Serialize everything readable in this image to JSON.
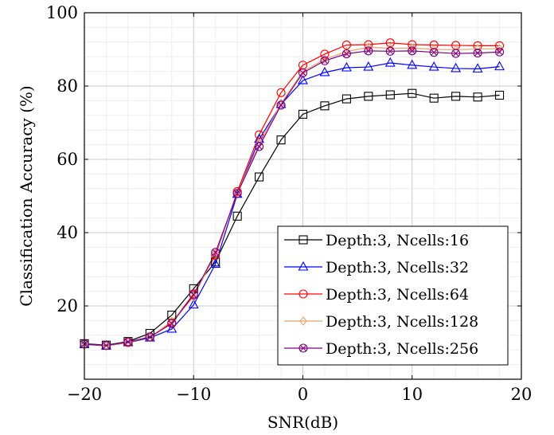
{
  "chart_data": {
    "type": "line",
    "xlabel": "SNR(dB)",
    "ylabel": "Classification Accuracy (%)",
    "xlim": [
      -20,
      20
    ],
    "ylim": [
      0,
      100
    ],
    "xticks": [
      -20,
      -10,
      0,
      10,
      20
    ],
    "xtick_labels": [
      "−20",
      "−10",
      "0",
      "10",
      "20"
    ],
    "yticks": [
      20,
      40,
      60,
      80,
      100
    ],
    "ytick_labels": [
      "20",
      "40",
      "60",
      "80",
      "100"
    ],
    "grid": true,
    "legend_position": "bottom-right",
    "x": [
      -20,
      -18,
      -16,
      -14,
      -12,
      -10,
      -8,
      -6,
      -4,
      -2,
      0,
      2,
      4,
      6,
      8,
      10,
      12,
      14,
      16,
      18
    ],
    "series": [
      {
        "name": "Depth:3, Ncells:16",
        "color": "#000000",
        "marker": "square",
        "values": [
          9.7,
          9.3,
          10.3,
          12.5,
          17.5,
          24.7,
          32.0,
          44.5,
          55.2,
          65.3,
          72.3,
          74.6,
          76.5,
          77.2,
          77.6,
          78.0,
          76.7,
          77.2,
          77.0,
          77.5
        ]
      },
      {
        "name": "Depth:3, Ncells:32",
        "color": "#0000ff",
        "marker": "triangle",
        "values": [
          9.5,
          9.1,
          10.0,
          11.3,
          13.7,
          20.3,
          31.4,
          50.5,
          65.5,
          75.0,
          81.5,
          83.7,
          85.0,
          85.2,
          86.3,
          85.7,
          85.2,
          84.8,
          84.7,
          85.3
        ]
      },
      {
        "name": "Depth:3, Ncells:64",
        "color": "#ff0000",
        "marker": "circle",
        "values": [
          9.6,
          9.2,
          10.0,
          11.6,
          15.4,
          23.3,
          33.8,
          51.2,
          66.7,
          78.2,
          85.7,
          88.7,
          91.2,
          91.3,
          91.8,
          91.3,
          91.2,
          91.1,
          91.0,
          91.0
        ]
      },
      {
        "name": "Depth:3, Ncells:128",
        "color": "#e8a46b",
        "marker": "diamond",
        "values": [
          9.6,
          9.1,
          10.1,
          11.5,
          15.8,
          22.5,
          34.3,
          50.8,
          64.3,
          75.2,
          84.0,
          87.3,
          89.4,
          90.6,
          90.3,
          90.4,
          90.0,
          89.9,
          90.1,
          90.2
        ]
      },
      {
        "name": "Depth:3, Ncells:256",
        "color": "#7f007f",
        "marker": "circle-x",
        "values": [
          9.6,
          9.2,
          10.2,
          11.5,
          15.2,
          23.0,
          34.6,
          50.7,
          63.5,
          74.8,
          83.6,
          86.9,
          88.8,
          89.6,
          89.5,
          89.6,
          89.2,
          88.9,
          89.0,
          89.3
        ]
      }
    ]
  }
}
